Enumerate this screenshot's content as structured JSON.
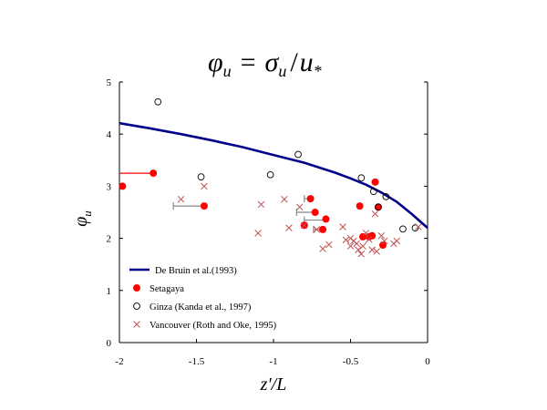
{
  "chart_data": {
    "type": "scatter",
    "title_parts": {
      "lhs": "φ",
      "lhs_sub": "u",
      "eq": "=",
      "num": "σ",
      "num_sub": "u",
      "slash": "/",
      "den": "u",
      "den_sub": "*"
    },
    "xlabel": "z'/L",
    "ylabel": "φ",
    "ylabel_sub": "u",
    "xlim": [
      -2,
      0
    ],
    "ylim": [
      0,
      5
    ],
    "xticks": [
      -2,
      -1.5,
      -1,
      -0.5,
      0
    ],
    "xtick_labels": [
      "-2",
      "-1.5",
      "-1",
      "-0.5",
      "0"
    ],
    "yticks": [
      0,
      1,
      2,
      3,
      4,
      5
    ],
    "ytick_labels": [
      "0",
      "1",
      "2",
      "3",
      "4",
      "5"
    ],
    "grid": false,
    "legend_position": "bottom-left",
    "series": [
      {
        "name": "De Bruin et al.(1993)",
        "kind": "line",
        "color": "#00008b",
        "x": [
          -2,
          -1.8,
          -1.6,
          -1.4,
          -1.2,
          -1.0,
          -0.8,
          -0.6,
          -0.5,
          -0.4,
          -0.3,
          -0.2,
          -0.1,
          -0.05,
          0
        ],
        "y": [
          4.21,
          4.11,
          4.0,
          3.88,
          3.75,
          3.6,
          3.45,
          3.26,
          3.15,
          3.03,
          2.88,
          2.7,
          2.46,
          2.33,
          2.2
        ]
      },
      {
        "name": "Setagaya",
        "kind": "marker-filled-circle",
        "color": "#ff0000",
        "x": [
          -1.98,
          -1.78,
          -1.45,
          -0.76,
          -0.8,
          -0.73,
          -0.68,
          -0.66,
          -0.44,
          -0.42,
          -0.38,
          -0.36,
          -0.34,
          -0.32,
          -0.29
        ],
        "y": [
          3.0,
          3.25,
          2.62,
          2.76,
          2.25,
          2.5,
          2.17,
          2.37,
          2.62,
          2.03,
          2.03,
          2.05,
          3.08,
          2.6,
          1.87
        ]
      },
      {
        "name": "Ginza (Kanda et al., 1997)",
        "kind": "marker-open-circle",
        "color": "#000000",
        "x": [
          -1.75,
          -1.47,
          -1.02,
          -0.84,
          -0.43,
          -0.35,
          -0.32,
          -0.27,
          -0.16,
          -0.08
        ],
        "y": [
          4.62,
          3.18,
          3.22,
          3.61,
          3.16,
          2.9,
          2.6,
          2.8,
          2.18,
          2.2
        ]
      },
      {
        "name": "Vancouver (Roth and Oke, 1995)",
        "kind": "marker-x",
        "color": "#c05050",
        "x": [
          -1.6,
          -1.45,
          -1.1,
          -1.08,
          -0.93,
          -0.9,
          -0.83,
          -0.8,
          -0.72,
          -0.68,
          -0.64,
          -0.55,
          -0.53,
          -0.5,
          -0.48,
          -0.45,
          -0.42,
          -0.4,
          -0.38,
          -0.36,
          -0.33,
          -0.3,
          -0.28,
          -0.22,
          -0.2,
          -0.06,
          -0.5,
          -0.46,
          -0.43,
          -0.34
        ],
        "y": [
          2.75,
          3.0,
          2.1,
          2.65,
          2.75,
          2.2,
          2.6,
          2.25,
          2.17,
          1.8,
          1.88,
          2.22,
          1.97,
          1.85,
          1.95,
          1.78,
          1.85,
          2.1,
          1.98,
          1.78,
          1.75,
          2.05,
          1.95,
          1.9,
          1.95,
          2.22,
          2.0,
          1.9,
          1.7,
          2.47
        ]
      }
    ],
    "error_bars": [
      {
        "y": 3.25,
        "x_from": -2.0,
        "x_to": -1.78,
        "color": "#ff0000",
        "cap": "end"
      },
      {
        "y": 2.62,
        "x_from": -1.65,
        "x_to": -1.45,
        "color": "#888888",
        "cap": "start"
      },
      {
        "y": 2.76,
        "x_from": -0.76,
        "x_to": -0.8,
        "color": "#888888",
        "cap": "end"
      },
      {
        "y": 2.5,
        "x_from": -0.73,
        "x_to": -0.85,
        "color": "#888888",
        "cap": "end"
      },
      {
        "y": 2.35,
        "x_from": -0.66,
        "x_to": -0.8,
        "color": "#888888",
        "cap": "end"
      },
      {
        "y": 2.17,
        "x_from": -0.68,
        "x_to": -0.74,
        "color": "#888888",
        "cap": "end"
      }
    ]
  }
}
